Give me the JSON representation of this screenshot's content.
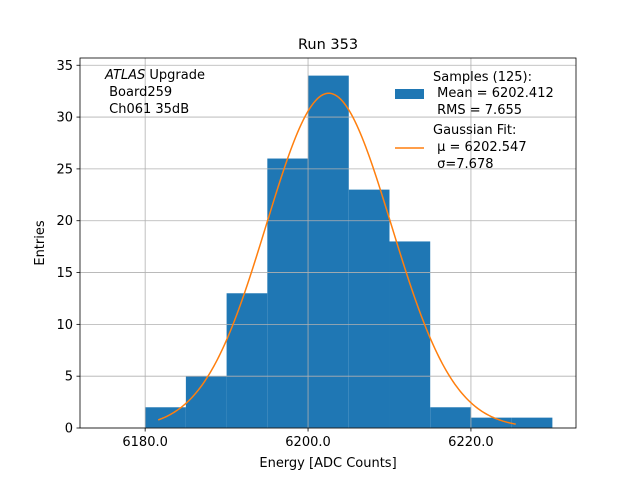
{
  "chart_data": {
    "type": "bar",
    "title": "Run 353",
    "xlabel": "Energy [ADC Counts]",
    "ylabel": "Entries",
    "xlim": [
      6172.0,
      6232.9
    ],
    "ylim": [
      0,
      35.7
    ],
    "grid": true,
    "xticks": [
      6180,
      6200,
      6220
    ],
    "xtick_labels": [
      "6180.0",
      "6200.0",
      "6220.0"
    ],
    "yticks": [
      0,
      5,
      10,
      15,
      20,
      25,
      30,
      35
    ],
    "ytick_labels": [
      "0",
      "5",
      "10",
      "15",
      "20",
      "25",
      "30",
      "35"
    ],
    "bin_edges": [
      6180,
      6185,
      6190,
      6195,
      6200,
      6205,
      6210,
      6215,
      6220,
      6225,
      6230
    ],
    "values": [
      2,
      5,
      13,
      26,
      34,
      23,
      18,
      2,
      1,
      1
    ],
    "bar_color": "#1f77b4",
    "fit": {
      "mu": 6202.547,
      "sigma": 7.678,
      "amplitude": 32.3,
      "x_range": [
        6181.6,
        6225.5
      ],
      "color": "#ff7f0e"
    },
    "annotation": {
      "line1_italic": "ATLAS",
      "line1_rest": " Upgrade",
      "line2": " Board259",
      "line3": " Ch061 35dB"
    },
    "legend": {
      "placement": "top-right",
      "samples": [
        "Samples (125):",
        " Mean = 6202.412",
        " RMS = 7.655"
      ],
      "fit": [
        "Gaussian Fit:",
        " μ = 6202.547",
        " σ=7.678"
      ]
    }
  }
}
